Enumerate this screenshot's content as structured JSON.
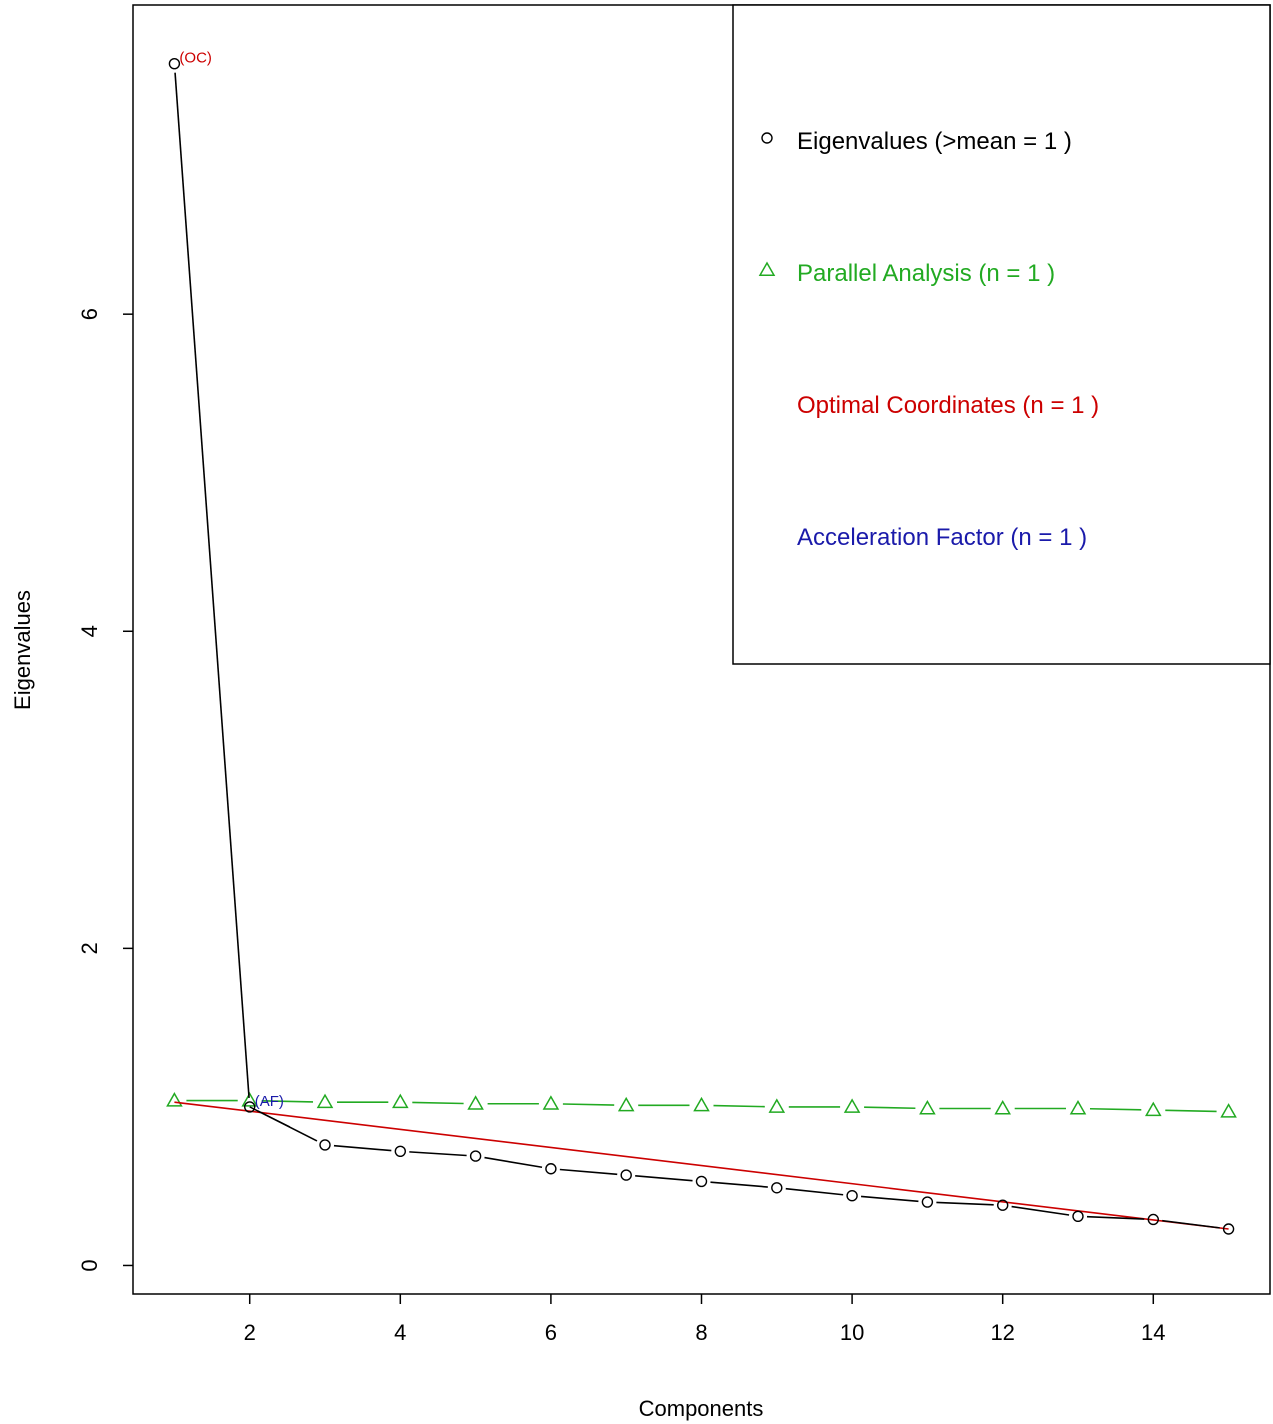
{
  "chart_data": {
    "type": "line",
    "title": "",
    "xlabel": "Components",
    "ylabel": "Eigenvalues",
    "xlim": [
      0.45,
      15.55
    ],
    "ylim": [
      -0.18,
      7.95
    ],
    "x_ticks": [
      2,
      4,
      6,
      8,
      10,
      12,
      14
    ],
    "y_ticks": [
      0,
      2,
      4,
      6
    ],
    "grid": false,
    "legend_position": "top-right",
    "colors": {
      "eigen": "#000000",
      "parallel": "#22aa22",
      "optimal": "#cc0000",
      "acceleration": "#1a1aaa"
    },
    "series": [
      {
        "name": "Eigenvalues (>mean  =  1 )",
        "marker": "circle",
        "x": [
          1,
          2,
          3,
          4,
          5,
          6,
          7,
          8,
          9,
          10,
          11,
          12,
          13,
          14,
          15
        ],
        "values": [
          7.58,
          1.0,
          0.76,
          0.72,
          0.69,
          0.61,
          0.57,
          0.53,
          0.49,
          0.44,
          0.4,
          0.38,
          0.31,
          0.29,
          0.23
        ]
      },
      {
        "name": "Parallel Analysis (n =  1 )",
        "marker": "triangle",
        "x": [
          1,
          2,
          3,
          4,
          5,
          6,
          7,
          8,
          9,
          10,
          11,
          12,
          13,
          14,
          15
        ],
        "values": [
          1.04,
          1.04,
          1.03,
          1.03,
          1.02,
          1.02,
          1.01,
          1.01,
          1.0,
          1.0,
          0.99,
          0.99,
          0.99,
          0.98,
          0.97
        ]
      },
      {
        "name": "Optimal Coordinates (n =  1 )",
        "marker": "none",
        "x": [
          1,
          15
        ],
        "values": [
          1.03,
          0.23
        ]
      },
      {
        "name": "Acceleration Factor (n =  1 )",
        "marker": "none",
        "x": [],
        "values": []
      }
    ],
    "acceleration_segment": {
      "x": [
        2,
        3
      ],
      "values": [
        1.0,
        0.76
      ]
    },
    "annotations": [
      {
        "text": "(OC)",
        "x": 1,
        "y": 7.58,
        "color": "#cc0000"
      },
      {
        "text": "(AF)",
        "x": 2,
        "y": 1.0,
        "color": "#1a1aaa"
      }
    ]
  }
}
